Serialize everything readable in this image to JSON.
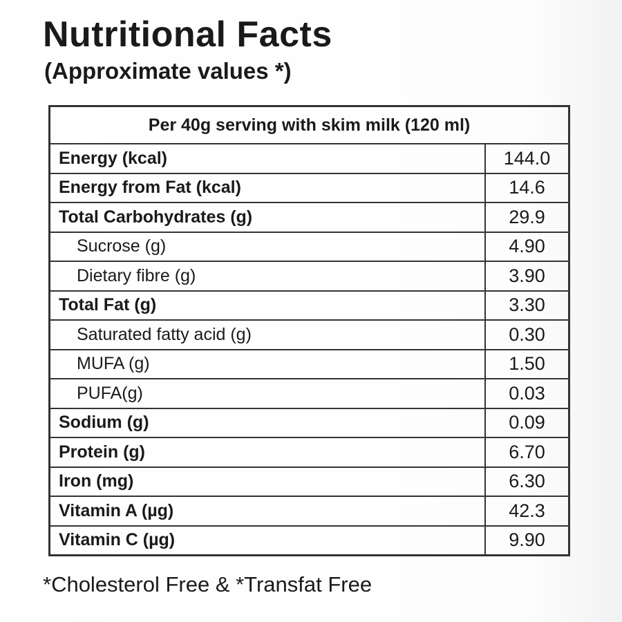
{
  "header": {
    "title": "Nutritional Facts",
    "subtitle": "(Approximate values *)"
  },
  "table": {
    "caption": "Per 40g serving with skim milk (120 ml)",
    "rows": [
      {
        "label": "Energy (kcal)",
        "value": "144.0"
      },
      {
        "label": "Energy from Fat (kcal)",
        "value": "14.6"
      },
      {
        "label": "Total Carbohydrates (g)",
        "value": "29.9",
        "sub": [
          {
            "label": "Sucrose (g)",
            "value": "4.90"
          },
          {
            "label": "Dietary fibre (g)",
            "value": "3.90"
          }
        ]
      },
      {
        "label": "Total Fat (g)",
        "value": "3.30",
        "sub": [
          {
            "label": "Saturated fatty acid (g)",
            "value": "0.30"
          },
          {
            "label": "MUFA (g)",
            "value": "1.50"
          },
          {
            "label": "PUFA(g)",
            "value": "0.03"
          }
        ]
      },
      {
        "label": "Sodium (g)",
        "value": "0.09"
      },
      {
        "label": "Protein (g)",
        "value": "6.70"
      },
      {
        "label": "Iron (mg)",
        "value": "6.30"
      },
      {
        "label": "Vitamin A (µg)",
        "value": "42.3"
      },
      {
        "label": "Vitamin C (µg)",
        "value": "9.90"
      }
    ]
  },
  "footnote": "*Cholesterol Free & *Transfat Free"
}
